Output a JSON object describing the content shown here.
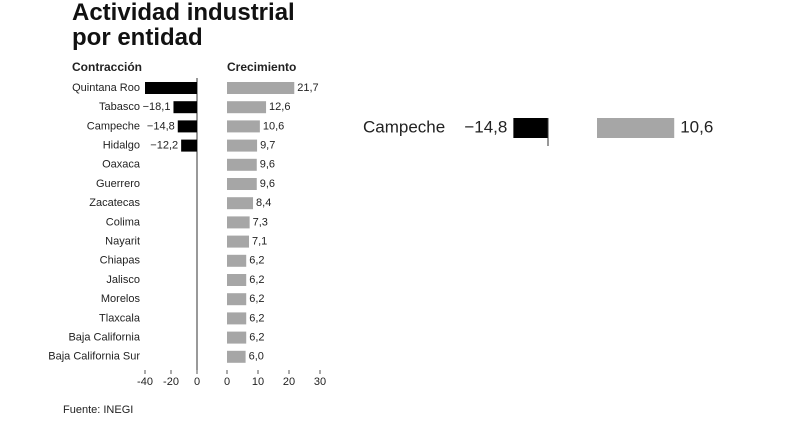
{
  "chart_data": {
    "type": "bar",
    "title": "Actividad industrial por entidad",
    "source": "Fuente: INEGI",
    "categories": [
      "Quintana Roo",
      "Tabasco",
      "Campeche",
      "Hidalgo",
      "Oaxaca",
      "Guerrero",
      "Zacatecas",
      "Colima",
      "Nayarit",
      "Chiapas",
      "Jalisco",
      "Morelos",
      "Tlaxcala",
      "Baja California",
      "Baja California Sur"
    ],
    "series": [
      {
        "name": "Contracción",
        "color": "#000000",
        "values": [
          -40,
          -18.1,
          -14.8,
          -12.2,
          null,
          null,
          null,
          null,
          null,
          null,
          null,
          null,
          null,
          null,
          null
        ],
        "value_labels": [
          null,
          "−18,1",
          "−14,8",
          "−12,2",
          null,
          null,
          null,
          null,
          null,
          null,
          null,
          null,
          null,
          null,
          null
        ],
        "xlim": [
          -40,
          0
        ],
        "xticks": [
          -40,
          -20,
          0
        ]
      },
      {
        "name": "Crecimiento",
        "color": "#a6a6a6",
        "values": [
          21.7,
          12.6,
          10.6,
          9.7,
          9.6,
          9.6,
          8.4,
          7.3,
          7.1,
          6.2,
          6.2,
          6.2,
          6.2,
          6.2,
          6.0
        ],
        "value_labels": [
          "21,7",
          "12,6",
          "10,6",
          "9,7",
          "9,6",
          "9,6",
          "8,4",
          "7,3",
          "7,1",
          "6,2",
          "6,2",
          "6,2",
          "6,2",
          "6,2",
          "6,0"
        ],
        "xlim": [
          0,
          30
        ],
        "xticks": [
          0,
          10,
          20,
          30
        ]
      }
    ],
    "highlight": 2
  }
}
